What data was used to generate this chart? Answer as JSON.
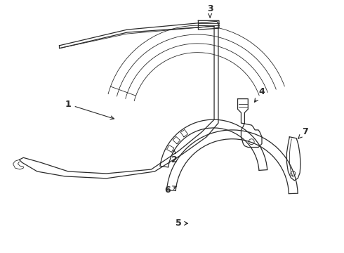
{
  "background_color": "#ffffff",
  "line_color": "#2a2a2a",
  "arrow_color": "#2a2a2a",
  "figsize": [
    4.9,
    3.6
  ],
  "dpi": 100,
  "label_fontsize": 9
}
